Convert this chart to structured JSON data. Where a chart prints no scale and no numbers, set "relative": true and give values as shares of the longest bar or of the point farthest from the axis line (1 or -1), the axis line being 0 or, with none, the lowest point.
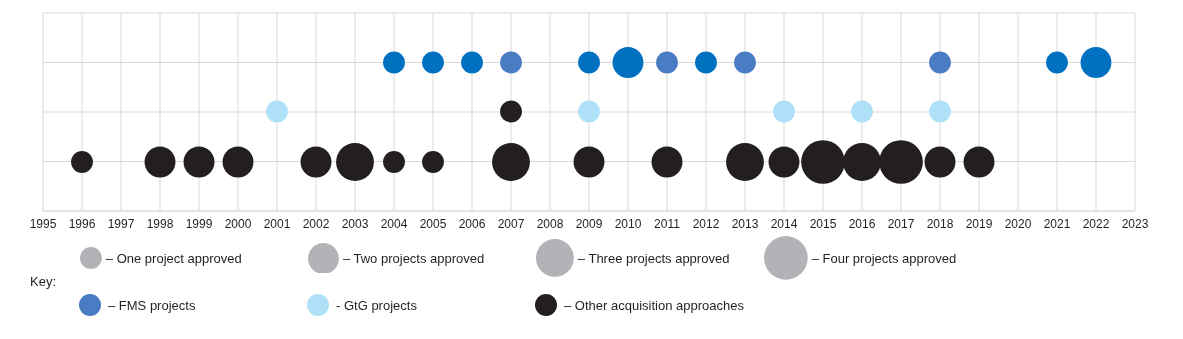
{
  "chart_data": {
    "type": "bubble",
    "relative": true,
    "xlim": [
      1995,
      2023
    ],
    "xticks": [
      1995,
      1996,
      1997,
      1998,
      1999,
      2000,
      2001,
      2002,
      2003,
      2004,
      2005,
      2006,
      2007,
      2008,
      2009,
      2010,
      2011,
      2012,
      2013,
      2014,
      2015,
      2016,
      2017,
      2018,
      2019,
      2020,
      2021,
      2022,
      2023
    ],
    "grid": true,
    "legend": "bottom",
    "legend_title": "Key:",
    "size_legend": [
      {
        "value": 1,
        "label": "– One project approved"
      },
      {
        "value": 2,
        "label": "– Two projects approved"
      },
      {
        "value": 3,
        "label": "– Three projects approved"
      },
      {
        "value": 4,
        "label": "– Four projects approved"
      }
    ],
    "series": [
      {
        "name": "– FMS projects",
        "color": "#4a7cc4",
        "colors": [
          "#0070c0",
          "#0070c0",
          "#0070c0",
          "#4a7cc4",
          "#0070c0",
          "#0070c0",
          "#4a7cc4",
          "#0070c0",
          "#4a7cc4",
          "#4a7cc4",
          "#0070c0",
          "#0070c0"
        ],
        "x": [
          2004,
          2005,
          2006,
          2007,
          2009,
          2010,
          2011,
          2012,
          2013,
          2018,
          2021,
          2022
        ],
        "values": [
          1,
          1,
          1,
          1,
          1,
          1,
          1,
          1,
          1,
          1,
          1,
          1
        ],
        "sizes": [
          1,
          1,
          1,
          1,
          1,
          2,
          1,
          1,
          1,
          1,
          1,
          2
        ]
      },
      {
        "name": "- GtG projects",
        "color": "#aee0f7",
        "x": [
          2001,
          2009,
          2014,
          2016,
          2018
        ],
        "values": [
          0.67,
          0.67,
          0.67,
          0.67,
          0.67
        ],
        "sizes": [
          1,
          1,
          1,
          1,
          1
        ]
      },
      {
        "name": "– Other acquisition approaches",
        "color": "#231f20",
        "x": [
          1996,
          1998,
          1999,
          2000,
          2002,
          2003,
          2004,
          2005,
          2007,
          2007,
          2009,
          2011,
          2013,
          2014,
          2015,
          2016,
          2017,
          2018,
          2019
        ],
        "values": [
          0.33,
          0.33,
          0.33,
          0.33,
          0.33,
          0.33,
          0.33,
          0.33,
          0.33,
          0.67,
          0.33,
          0.33,
          0.33,
          0.33,
          0.33,
          0.33,
          0.33,
          0.33,
          0.33
        ],
        "sizes": [
          1,
          2,
          2,
          2,
          2,
          3,
          1,
          1,
          3,
          1,
          2,
          2,
          3,
          2,
          4,
          3,
          4,
          2,
          2
        ]
      }
    ]
  }
}
